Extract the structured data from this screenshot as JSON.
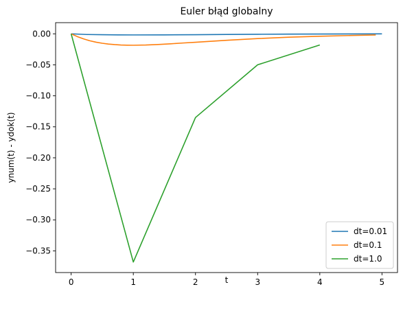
{
  "chart_data": {
    "type": "line",
    "title": "Euler błąd globalny",
    "xlabel": "t",
    "ylabel": "ynum(t) - ydok(t)",
    "xlim": [
      -0.25,
      5.25
    ],
    "ylim": [
      -0.385,
      0.018
    ],
    "xticks": [
      0,
      1,
      2,
      3,
      4,
      5
    ],
    "xtick_labels": [
      "0",
      "1",
      "2",
      "3",
      "4",
      "5"
    ],
    "yticks": [
      0.0,
      -0.05,
      -0.1,
      -0.15,
      -0.2,
      -0.25,
      -0.3,
      -0.35
    ],
    "ytick_labels": [
      "0.00",
      "−0.05",
      "−0.10",
      "−0.15",
      "−0.20",
      "−0.25",
      "−0.30",
      "−0.35"
    ],
    "grid": false,
    "legend_position": "bottom-right",
    "series": [
      {
        "name": "dt=0.01",
        "color": "#1f77b4",
        "x": [
          0,
          0.25,
          0.5,
          0.75,
          1,
          1.5,
          2,
          2.5,
          3,
          3.5,
          4,
          4.5,
          5
        ],
        "y": [
          0,
          -0.0011,
          -0.0015,
          -0.0017,
          -0.0018,
          -0.0017,
          -0.0014,
          -0.001,
          -0.0007,
          -0.0005,
          -0.0003,
          -0.0002,
          -0.0001
        ]
      },
      {
        "name": "dt=0.1",
        "color": "#ff7f0e",
        "x": [
          0,
          0.1,
          0.2,
          0.3,
          0.4,
          0.5,
          0.6,
          0.7,
          0.8,
          0.9,
          1.0,
          1.2,
          1.4,
          1.6,
          1.8,
          2.0,
          2.5,
          3.0,
          3.5,
          4.0,
          4.5,
          4.9
        ],
        "y": [
          0,
          -0.0045,
          -0.0082,
          -0.0112,
          -0.0135,
          -0.0152,
          -0.0165,
          -0.0174,
          -0.018,
          -0.0183,
          -0.0184,
          -0.0181,
          -0.0172,
          -0.0161,
          -0.0148,
          -0.0136,
          -0.0104,
          -0.0077,
          -0.0055,
          -0.0039,
          -0.0027,
          -0.0019
        ]
      },
      {
        "name": "dt=1.0",
        "color": "#2ca02c",
        "x": [
          0,
          1,
          2,
          3,
          4
        ],
        "y": [
          0,
          -0.368,
          -0.135,
          -0.05,
          -0.018
        ]
      }
    ]
  }
}
